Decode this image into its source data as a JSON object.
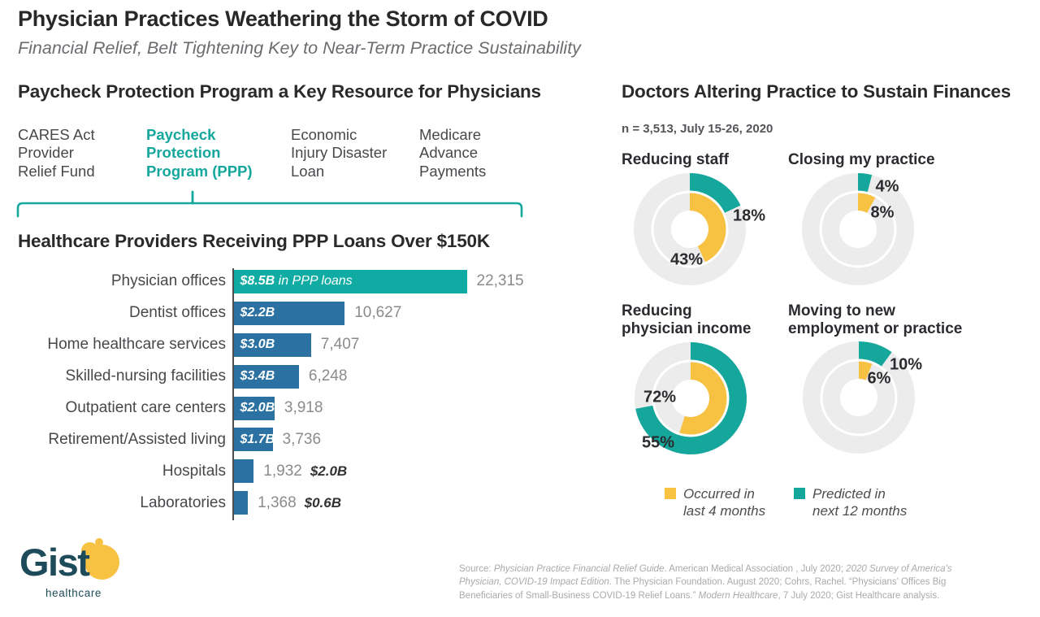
{
  "header": {
    "title": "Physician Practices Weathering the Storm of COVID",
    "subtitle": "Financial Relief, Belt Tightening Key to Near-Term Practice Sustainability"
  },
  "left_section": {
    "heading": "Paycheck Protection Program a Key Resource for Physicians",
    "programs": [
      {
        "lines": [
          "CARES Act",
          "Provider",
          "Relief Fund"
        ],
        "highlighted": false
      },
      {
        "lines": [
          "Paycheck",
          "Protection",
          "Program (PPP)"
        ],
        "highlighted": true
      },
      {
        "lines": [
          "Economic",
          "Injury Disaster",
          "Loan"
        ],
        "highlighted": false
      },
      {
        "lines": [
          "Medicare",
          "Advance",
          "Payments"
        ],
        "highlighted": false
      }
    ]
  },
  "chart_data": [
    {
      "type": "bar",
      "orientation": "horizontal",
      "title": "Healthcare Providers Receiving PPP Loans Over $150K",
      "categories": [
        "Physician offices",
        "Dentist offices",
        "Home healthcare services",
        "Skilled-nursing facilities",
        "Outpatient care centers",
        "Retirement/Assisted living",
        "Hospitals",
        "Laboratories"
      ],
      "values": [
        22315,
        10627,
        7407,
        6248,
        3918,
        3736,
        1932,
        1368
      ],
      "value_labels": [
        "22,315",
        "10,627",
        "7,407",
        "6,248",
        "3,918",
        "3,736",
        "1,932",
        "1,368"
      ],
      "bar_annotations": [
        "$8.5B",
        "$2.2B",
        "$3.0B",
        "$3.4B",
        "$2.0B",
        "$1.7B",
        "$2.0B",
        "$0.6B"
      ],
      "annotation_suffixes": [
        " in PPP loans",
        "",
        "",
        "",
        "",
        "",
        "",
        ""
      ],
      "annotation_inside": [
        true,
        true,
        true,
        true,
        true,
        true,
        false,
        false
      ],
      "bar_colors": [
        "#10aca4",
        "#2b72a2",
        "#2b72a2",
        "#2b72a2",
        "#2b72a2",
        "#2b72a2",
        "#2b72a2",
        "#2b72a2"
      ],
      "xlim": [
        0,
        22315
      ],
      "grid": false
    },
    {
      "type": "donut-grid",
      "title": "Doctors Altering Practice to Sustain Finances",
      "subtitle": "n = 3,513, July 15-26, 2020",
      "categories": [
        "Reducing staff",
        "Closing my practice",
        "Reducing physician income",
        "Moving to new employment or practice"
      ],
      "category_lines": [
        [
          "Reducing staff"
        ],
        [
          "Closing my practice"
        ],
        [
          "Reducing",
          "physician income"
        ],
        [
          "Moving to new",
          "employment or practice"
        ]
      ],
      "series": [
        {
          "name": "Occurred in last 4 months",
          "ring": "inner",
          "color": "#f7c242",
          "values": [
            43,
            8,
            55,
            6
          ]
        },
        {
          "name": "Predicted in next 12 months",
          "ring": "outer",
          "color": "#15a79c",
          "values": [
            18,
            4,
            72,
            10
          ]
        }
      ],
      "percent_labels": {
        "predicted": [
          "18%",
          "4%",
          "72%",
          "10%"
        ],
        "occurred": [
          "43%",
          "8%",
          "55%",
          "6%"
        ]
      },
      "legend_lines": [
        [
          "Occurred in",
          "last 4 months"
        ],
        [
          "Predicted in",
          "next 12 months"
        ]
      ],
      "legend_position": "bottom"
    }
  ],
  "footer": {
    "logo": {
      "wordmark": "Gist",
      "tagline": "healthcare"
    },
    "source_segments": [
      {
        "text": "Source: ",
        "italic": false
      },
      {
        "text": "Physician Practice Financial Relief Guide",
        "italic": true
      },
      {
        "text": ". American Medical Association , July 2020; ",
        "italic": false
      },
      {
        "text": "2020 Survey of America's Physician, COVID-19 Impact Edition",
        "italic": true
      },
      {
        "text": ". The Physician Foundation. August 2020; Cohrs, Rachel. “Physicians’ Offices Big Beneficiaries of Small-Business COVID-19 Relief Loans.” ",
        "italic": false
      },
      {
        "text": "Modern Healthcare",
        "italic": true
      },
      {
        "text": ", 7 July 2020; Gist Healthcare analysis.",
        "italic": false
      }
    ]
  },
  "colors": {
    "teal_accent": "#15a79c",
    "bar_teal": "#10aca4",
    "bar_blue": "#2b72a2",
    "yellow": "#f7c242",
    "ring_gray": "#ececec",
    "logo_navy": "#1e4b5a",
    "heading_dark": "#2a2a2d",
    "body_gray": "#47484b",
    "count_gray": "#8a8b8e",
    "source_gray": "#a8aaad"
  }
}
